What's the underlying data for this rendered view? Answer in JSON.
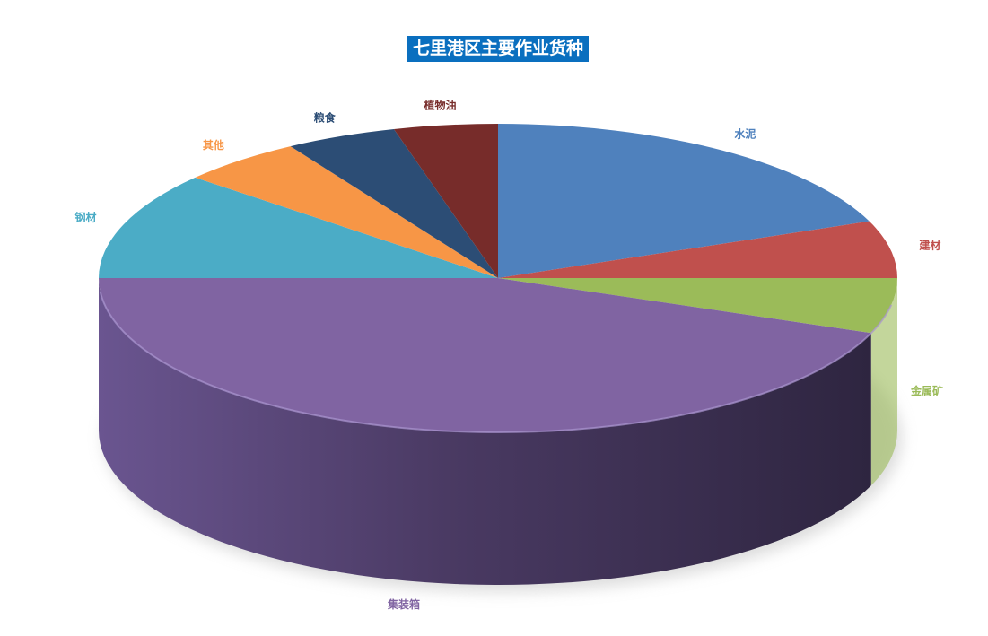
{
  "chart_data": {
    "type": "pie",
    "style": "3d",
    "title": "七里港区主要作业货种",
    "unit": "percent (estimated)",
    "start": "12 o'clock, clockwise",
    "slices": [
      {
        "label": "水泥",
        "value": 19,
        "color": "#4f81bd"
      },
      {
        "label": "建材",
        "value": 6,
        "color": "#c0504d"
      },
      {
        "label": "金属矿",
        "value": 5.8,
        "color": "#9bbb59"
      },
      {
        "label": "集装箱",
        "value": 44.2,
        "color": "#8064a2"
      },
      {
        "label": "钢材",
        "value": 11.3,
        "color": "#4bacc6"
      },
      {
        "label": "其他",
        "value": 5,
        "color": "#f79646"
      },
      {
        "label": "粮食",
        "value": 4.5,
        "color": "#2c4d75"
      },
      {
        "label": "植物油",
        "value": 4.2,
        "color": "#772c2a"
      }
    ],
    "legend": "none",
    "data_labels": "category names outside slices"
  }
}
